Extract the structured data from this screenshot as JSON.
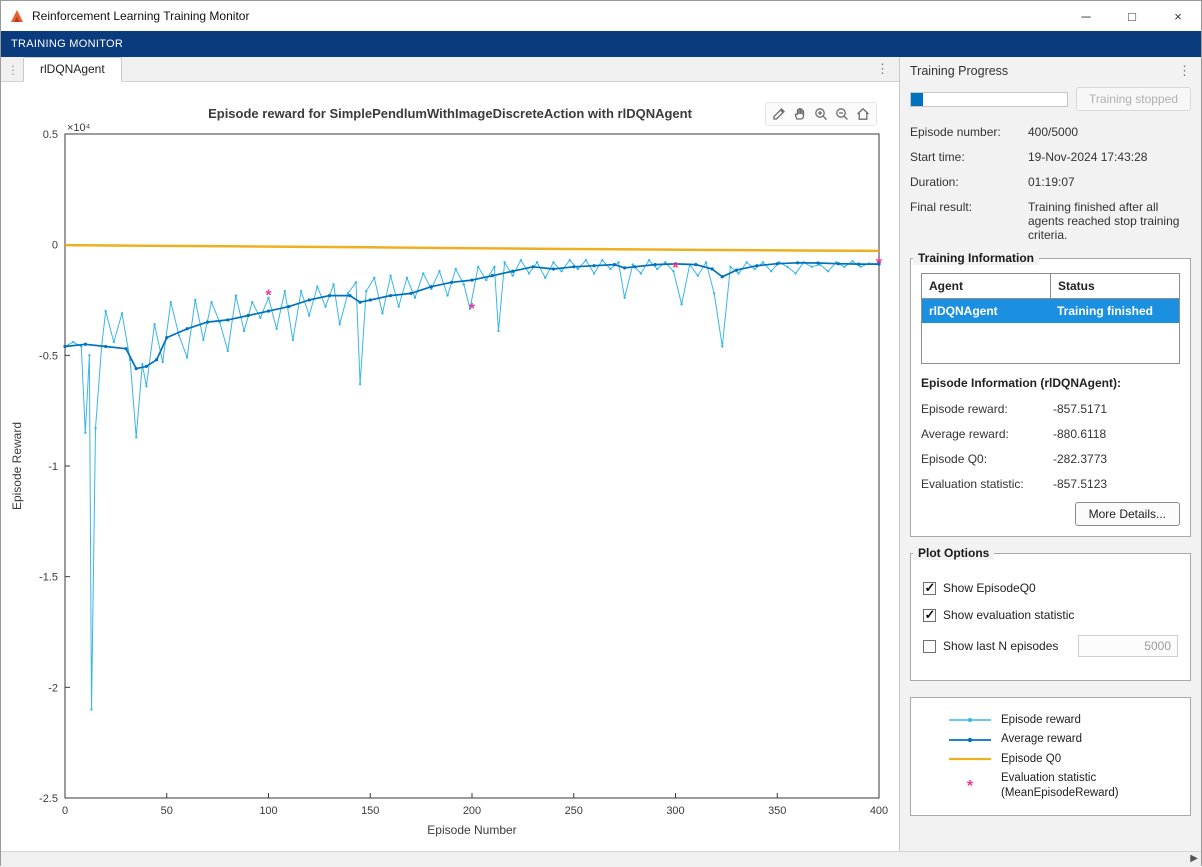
{
  "window": {
    "title": "Reinforcement Learning Training Monitor",
    "controls": {
      "minimize": "─",
      "maximize": "□",
      "close": "×"
    }
  },
  "toolstrip": {
    "label": "TRAINING MONITOR"
  },
  "tabs": {
    "active": "rlDQNAgent"
  },
  "figure": {
    "title": "Episode reward for SimplePendlumWithImageDiscreteAction with rlDQNAgent",
    "toolbar_icons": [
      "export-icon",
      "pan-icon",
      "zoom-in-icon",
      "zoom-out-icon",
      "home-icon"
    ]
  },
  "progress": {
    "panel_title": "Training Progress",
    "percent": 8,
    "stop_button_label": "Training stopped",
    "fields": [
      {
        "label": "Episode number:",
        "value": "400/5000"
      },
      {
        "label": "Start time:",
        "value": "19-Nov-2024 17:43:28"
      },
      {
        "label": "Duration:",
        "value": "01:19:07"
      },
      {
        "label": "Final result:",
        "value": "Training finished after all agents reached stop training criteria."
      }
    ]
  },
  "training_information": {
    "title": "Training Information",
    "table": {
      "headers": [
        "Agent",
        "Status"
      ],
      "row": {
        "agent": "rlDQNAgent",
        "status": "Training finished"
      }
    },
    "episode_info_title": "Episode Information (rlDQNAgent):",
    "fields": [
      {
        "label": "Episode reward:",
        "value": "-857.5171"
      },
      {
        "label": "Average reward:",
        "value": "-880.6118"
      },
      {
        "label": "Episode Q0:",
        "value": "-282.3773"
      },
      {
        "label": "Evaluation statistic:",
        "value": "-857.5123"
      }
    ],
    "more_details_label": "More Details..."
  },
  "plot_options": {
    "title": "Plot Options",
    "options": [
      {
        "label": "Show EpisodeQ0",
        "checked": true
      },
      {
        "label": "Show evaluation statistic",
        "checked": true
      },
      {
        "label": "Show last N episodes",
        "checked": false,
        "value": "5000"
      }
    ]
  },
  "legend": {
    "items": [
      {
        "label": "Episode reward",
        "color": "#39b6e9",
        "marker": "dot"
      },
      {
        "label": "Average reward",
        "color": "#0072bd",
        "marker": "dot"
      },
      {
        "label": "Episode Q0",
        "color": "#edb120",
        "marker": "none"
      },
      {
        "label": "Evaluation statistic",
        "label2": "(MeanEpisodeReward)",
        "color": "#e8399b",
        "marker": "*"
      }
    ]
  },
  "chart_data": {
    "type": "line",
    "title": "Episode reward for SimplePendlumWithImageDiscreteAction with rlDQNAgent",
    "xlabel": "Episode Number",
    "ylabel": "Episode Reward",
    "xlim": [
      0,
      400
    ],
    "ylim": [
      -25000,
      5000
    ],
    "y_multiplier": "×10⁴",
    "grid": false,
    "xticks": [
      0,
      50,
      100,
      150,
      200,
      250,
      300,
      350,
      400
    ],
    "yticks": [
      {
        "value": 5000,
        "label": "0.5"
      },
      {
        "value": 0,
        "label": "0"
      },
      {
        "value": -5000,
        "label": "-0.5"
      },
      {
        "value": -10000,
        "label": "-1"
      },
      {
        "value": -15000,
        "label": "-1.5"
      },
      {
        "value": -20000,
        "label": "-2"
      },
      {
        "value": -25000,
        "label": "-2.5"
      }
    ],
    "series": [
      {
        "name": "Episode reward",
        "type": "line",
        "color": "#39b6e9",
        "width": 1,
        "markers": true,
        "marker_r": 1.2,
        "points": [
          [
            0,
            -4600
          ],
          [
            4,
            -4400
          ],
          [
            8,
            -4600
          ],
          [
            10,
            -8500
          ],
          [
            12,
            -5000
          ],
          [
            13,
            -21000
          ],
          [
            15,
            -8300
          ],
          [
            18,
            -4600
          ],
          [
            20,
            -3000
          ],
          [
            24,
            -4400
          ],
          [
            28,
            -3100
          ],
          [
            32,
            -5200
          ],
          [
            35,
            -8700
          ],
          [
            38,
            -5400
          ],
          [
            40,
            -6400
          ],
          [
            44,
            -3600
          ],
          [
            48,
            -5300
          ],
          [
            52,
            -2600
          ],
          [
            56,
            -4100
          ],
          [
            60,
            -5100
          ],
          [
            64,
            -2500
          ],
          [
            68,
            -4300
          ],
          [
            72,
            -2600
          ],
          [
            76,
            -3500
          ],
          [
            80,
            -4800
          ],
          [
            84,
            -2300
          ],
          [
            88,
            -3900
          ],
          [
            92,
            -2600
          ],
          [
            96,
            -3300
          ],
          [
            100,
            -2400
          ],
          [
            104,
            -3800
          ],
          [
            108,
            -2100
          ],
          [
            112,
            -4300
          ],
          [
            116,
            -2100
          ],
          [
            120,
            -3200
          ],
          [
            124,
            -1900
          ],
          [
            128,
            -2800
          ],
          [
            132,
            -1800
          ],
          [
            135,
            -3600
          ],
          [
            139,
            -2200
          ],
          [
            143,
            -1700
          ],
          [
            145,
            -6300
          ],
          [
            148,
            -2100
          ],
          [
            152,
            -1500
          ],
          [
            156,
            -3100
          ],
          [
            160,
            -1400
          ],
          [
            164,
            -2800
          ],
          [
            168,
            -1500
          ],
          [
            172,
            -2400
          ],
          [
            176,
            -1300
          ],
          [
            180,
            -2000
          ],
          [
            184,
            -1200
          ],
          [
            188,
            -2300
          ],
          [
            192,
            -1100
          ],
          [
            196,
            -1800
          ],
          [
            199,
            -2900
          ],
          [
            203,
            -1000
          ],
          [
            207,
            -1600
          ],
          [
            211,
            -1000
          ],
          [
            213,
            -3900
          ],
          [
            216,
            -800
          ],
          [
            220,
            -1400
          ],
          [
            224,
            -700
          ],
          [
            228,
            -1300
          ],
          [
            232,
            -800
          ],
          [
            236,
            -1500
          ],
          [
            240,
            -800
          ],
          [
            244,
            -1200
          ],
          [
            248,
            -700
          ],
          [
            252,
            -1100
          ],
          [
            256,
            -700
          ],
          [
            260,
            -1300
          ],
          [
            264,
            -700
          ],
          [
            268,
            -1100
          ],
          [
            272,
            -800
          ],
          [
            275,
            -2400
          ],
          [
            279,
            -900
          ],
          [
            283,
            -1300
          ],
          [
            287,
            -700
          ],
          [
            291,
            -1100
          ],
          [
            295,
            -800
          ],
          [
            299,
            -1200
          ],
          [
            303,
            -2700
          ],
          [
            307,
            -900
          ],
          [
            311,
            -1400
          ],
          [
            315,
            -800
          ],
          [
            319,
            -2200
          ],
          [
            323,
            -4600
          ],
          [
            327,
            -1000
          ],
          [
            331,
            -1300
          ],
          [
            335,
            -800
          ],
          [
            339,
            -1100
          ],
          [
            343,
            -800
          ],
          [
            347,
            -1200
          ],
          [
            351,
            -800
          ],
          [
            355,
            -1000
          ],
          [
            359,
            -1300
          ],
          [
            363,
            -800
          ],
          [
            367,
            -1000
          ],
          [
            371,
            -900
          ],
          [
            375,
            -1200
          ],
          [
            379,
            -800
          ],
          [
            383,
            -1000
          ],
          [
            387,
            -750
          ],
          [
            391,
            -1000
          ],
          [
            395,
            -850
          ],
          [
            400,
            -857.5
          ]
        ]
      },
      {
        "name": "Average reward",
        "type": "line",
        "color": "#0072bd",
        "width": 1.7,
        "markers": true,
        "marker_r": 1.6,
        "points": [
          [
            0,
            -4600
          ],
          [
            10,
            -4500
          ],
          [
            20,
            -4600
          ],
          [
            30,
            -4700
          ],
          [
            35,
            -5600
          ],
          [
            40,
            -5500
          ],
          [
            45,
            -5200
          ],
          [
            50,
            -4200
          ],
          [
            60,
            -3800
          ],
          [
            70,
            -3500
          ],
          [
            80,
            -3400
          ],
          [
            90,
            -3200
          ],
          [
            100,
            -3000
          ],
          [
            110,
            -2800
          ],
          [
            120,
            -2500
          ],
          [
            130,
            -2300
          ],
          [
            140,
            -2300
          ],
          [
            145,
            -2600
          ],
          [
            150,
            -2500
          ],
          [
            160,
            -2300
          ],
          [
            170,
            -2200
          ],
          [
            180,
            -1900
          ],
          [
            190,
            -1700
          ],
          [
            200,
            -1600
          ],
          [
            210,
            -1400
          ],
          [
            220,
            -1200
          ],
          [
            230,
            -1000
          ],
          [
            240,
            -1100
          ],
          [
            250,
            -1000
          ],
          [
            260,
            -950
          ],
          [
            270,
            -900
          ],
          [
            275,
            -1050
          ],
          [
            280,
            -1000
          ],
          [
            290,
            -900
          ],
          [
            300,
            -870
          ],
          [
            310,
            -900
          ],
          [
            318,
            -1100
          ],
          [
            323,
            -1450
          ],
          [
            330,
            -1150
          ],
          [
            340,
            -950
          ],
          [
            350,
            -860
          ],
          [
            360,
            -820
          ],
          [
            370,
            -830
          ],
          [
            380,
            -860
          ],
          [
            390,
            -880
          ],
          [
            400,
            -880.6
          ]
        ]
      },
      {
        "name": "Episode Q0",
        "type": "line",
        "color": "#edb120",
        "width": 2.5,
        "markers": false,
        "points": [
          [
            0,
            -20
          ],
          [
            40,
            -50
          ],
          [
            80,
            -75
          ],
          [
            120,
            -100
          ],
          [
            160,
            -130
          ],
          [
            200,
            -160
          ],
          [
            240,
            -190
          ],
          [
            280,
            -215
          ],
          [
            320,
            -240
          ],
          [
            360,
            -262
          ],
          [
            400,
            -282.4
          ]
        ]
      },
      {
        "name": "Evaluation statistic (MeanEpisodeReward)",
        "type": "scatter-asterisk",
        "color": "#e8399b",
        "points": [
          [
            100,
            -2300
          ],
          [
            200,
            -2900
          ],
          [
            300,
            -1050
          ],
          [
            400,
            -857.5
          ]
        ]
      }
    ]
  }
}
